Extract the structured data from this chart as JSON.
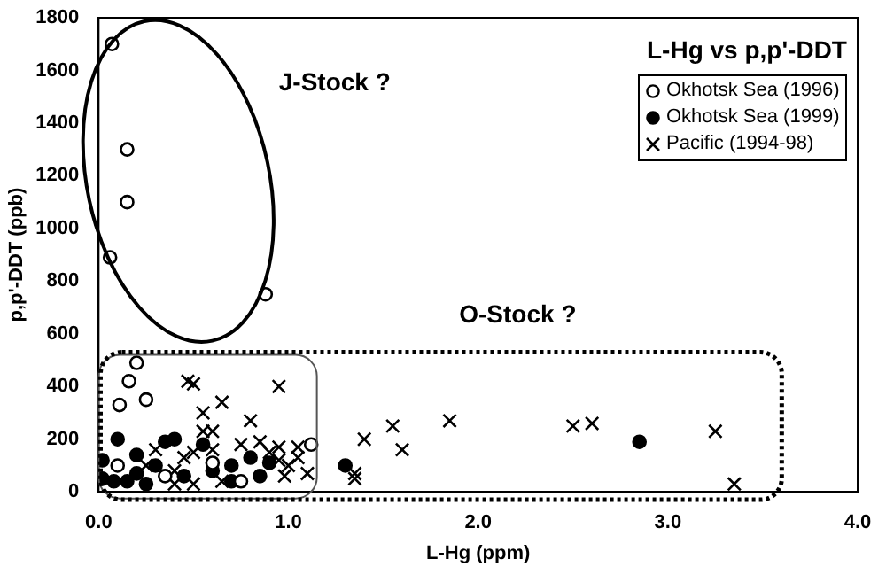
{
  "chart_data": {
    "type": "scatter",
    "title": "L-Hg vs p,p'-DDT",
    "xlabel": "L-Hg (ppm)",
    "ylabel": "p,p'-DDT (ppb)",
    "xlim": [
      0,
      4
    ],
    "xticks": [
      {
        "value": 0,
        "label": "0.0"
      },
      {
        "value": 1,
        "label": "1.0"
      },
      {
        "value": 2,
        "label": "2.0"
      },
      {
        "value": 3,
        "label": "3.0"
      },
      {
        "value": 4,
        "label": "4.0"
      }
    ],
    "ylim": [
      0,
      1800
    ],
    "yticks": [
      0,
      200,
      400,
      600,
      800,
      1000,
      1200,
      1400,
      1600,
      1800
    ],
    "grid": false,
    "legend": "top right",
    "annotations": [
      "J-Stock ?",
      "O-Stock ?"
    ],
    "series": [
      {
        "name": "Okhotsk Sea (1996)",
        "color": "#ffffff",
        "marker": "circle",
        "x": [
          0.07,
          0.15,
          0.15,
          0.06,
          0.88,
          0.2,
          0.16,
          0.11,
          0.25,
          1.12,
          0.1,
          0.35,
          0.6,
          0.75
        ],
        "values": [
          1700,
          1300,
          1100,
          890,
          750,
          490,
          420,
          330,
          350,
          180,
          100,
          60,
          110,
          40
        ]
      },
      {
        "name": "Okhotsk Sea (1999)",
        "color": "#000000",
        "marker": "circle",
        "x": [
          0.02,
          0.1,
          0.02,
          0.08,
          0.15,
          0.2,
          0.2,
          0.3,
          0.35,
          0.4,
          0.25,
          0.45,
          0.55,
          0.6,
          0.7,
          0.8,
          0.85,
          0.9,
          1.3,
          2.85,
          0.7
        ],
        "values": [
          120,
          200,
          50,
          40,
          40,
          70,
          140,
          100,
          190,
          200,
          30,
          60,
          180,
          80,
          100,
          130,
          60,
          110,
          100,
          190,
          40
        ]
      },
      {
        "name": "Pacific (1994-98)",
        "color": "#000000",
        "marker": "cross",
        "x": [
          0.47,
          0.5,
          0.95,
          0.55,
          0.65,
          0.55,
          0.6,
          0.8,
          0.3,
          0.45,
          0.5,
          0.6,
          1.05,
          0.75,
          0.95,
          0.85,
          0.9,
          0.95,
          1.0,
          1.05,
          1.1,
          0.4,
          0.5,
          0.65,
          0.98,
          1.4,
          1.55,
          1.6,
          1.35,
          1.35,
          1.85,
          2.5,
          2.6,
          3.25,
          3.35,
          0.25,
          0.4
        ],
        "values": [
          420,
          410,
          400,
          300,
          340,
          230,
          230,
          270,
          160,
          130,
          150,
          160,
          170,
          180,
          170,
          190,
          150,
          120,
          100,
          130,
          70,
          30,
          30,
          40,
          60,
          200,
          250,
          160,
          70,
          50,
          270,
          250,
          260,
          230,
          30,
          100,
          80
        ]
      }
    ]
  }
}
